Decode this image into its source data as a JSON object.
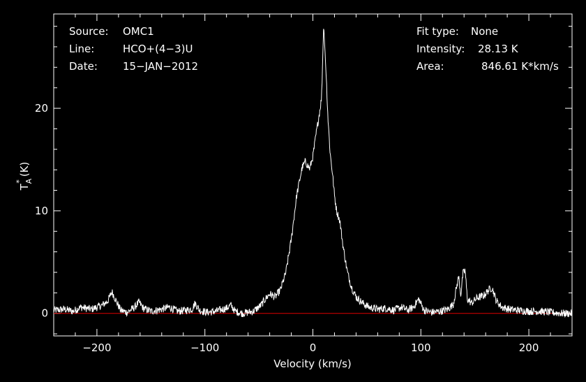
{
  "info": {
    "source_label": "Source:",
    "source_value": "OMC1",
    "line_label": "Line:",
    "line_value": "HCO+(4−3)U",
    "date_label": "Date:",
    "date_value": "15−JAN−2012",
    "fit_label": "Fit type:",
    "fit_value": "None",
    "intensity_label": "Intensity:",
    "intensity_value": "28.13 K",
    "area_label": "Area:",
    "area_value": "846.61 K*km/s"
  },
  "chart_data": {
    "type": "line",
    "xlabel": "Velocity (km/s)",
    "ylabel_main": "T",
    "ylabel_sup": "*",
    "ylabel_sub": "A",
    "ylabel_unit": "(K)",
    "xlim": [
      -240,
      240
    ],
    "ylim": [
      -2.2,
      29.2
    ],
    "x_ticks": [
      -200,
      -100,
      0,
      100,
      200
    ],
    "x_tick_labels": [
      "−200",
      "−100",
      "0",
      "100",
      "200"
    ],
    "y_ticks": [
      0,
      10,
      20
    ],
    "y_tick_labels": [
      "0",
      "10",
      "20"
    ],
    "baseline": 0,
    "series": [
      {
        "values_x": [
          -240,
          -230,
          -222,
          -215,
          -205,
          -195,
          -190,
          -186,
          -183,
          -178,
          -172,
          -165,
          -161,
          -157,
          -150,
          -140,
          -133,
          -125,
          -118,
          -112,
          -109,
          -105,
          -98,
          -90,
          -80,
          -76,
          -72,
          -65,
          -55,
          -48,
          -44,
          -40,
          -35,
          -30,
          -25,
          -20,
          -15,
          -10,
          -7,
          -3,
          0,
          3,
          6,
          8,
          9,
          10,
          12,
          14,
          16,
          18,
          20,
          22,
          25,
          28,
          32,
          36,
          40,
          46,
          52,
          60,
          68,
          75,
          82,
          88,
          93,
          98,
          103,
          110,
          118,
          125,
          130,
          133,
          135,
          137,
          139,
          141,
          143,
          147,
          152,
          158,
          163,
          166,
          170,
          175,
          182,
          190,
          200,
          210,
          220,
          230,
          240
        ],
        "values_y": [
          0.3,
          0.4,
          0.2,
          0.6,
          0.4,
          0.8,
          1.2,
          2.1,
          1.4,
          0.3,
          0.1,
          0.6,
          1.1,
          0.5,
          0.2,
          0.4,
          0.6,
          0.2,
          0.3,
          0.4,
          1.0,
          0.3,
          0.1,
          0.2,
          0.5,
          0.8,
          0.2,
          0.0,
          0.2,
          0.8,
          1.4,
          1.9,
          1.6,
          2.3,
          4.0,
          7.2,
          11.5,
          14.2,
          14.8,
          14.1,
          15.3,
          17.5,
          19.5,
          21.0,
          24.5,
          28.1,
          24.0,
          19.0,
          15.6,
          13.8,
          11.5,
          10.0,
          9.0,
          6.5,
          4.0,
          2.5,
          1.6,
          1.0,
          0.6,
          0.4,
          0.5,
          0.3,
          0.6,
          0.3,
          0.6,
          1.4,
          0.3,
          0.1,
          0.2,
          0.4,
          0.9,
          2.5,
          3.6,
          1.8,
          3.9,
          4.2,
          1.4,
          1.0,
          1.5,
          1.7,
          2.3,
          2.5,
          1.2,
          0.6,
          0.4,
          0.3,
          0.2,
          0.2,
          0.1,
          0.0,
          0.0
        ]
      }
    ],
    "colors": {
      "background": "#000000",
      "trace": "#ffffff",
      "baseline": "#e00000",
      "axes": "#ffffff"
    }
  }
}
